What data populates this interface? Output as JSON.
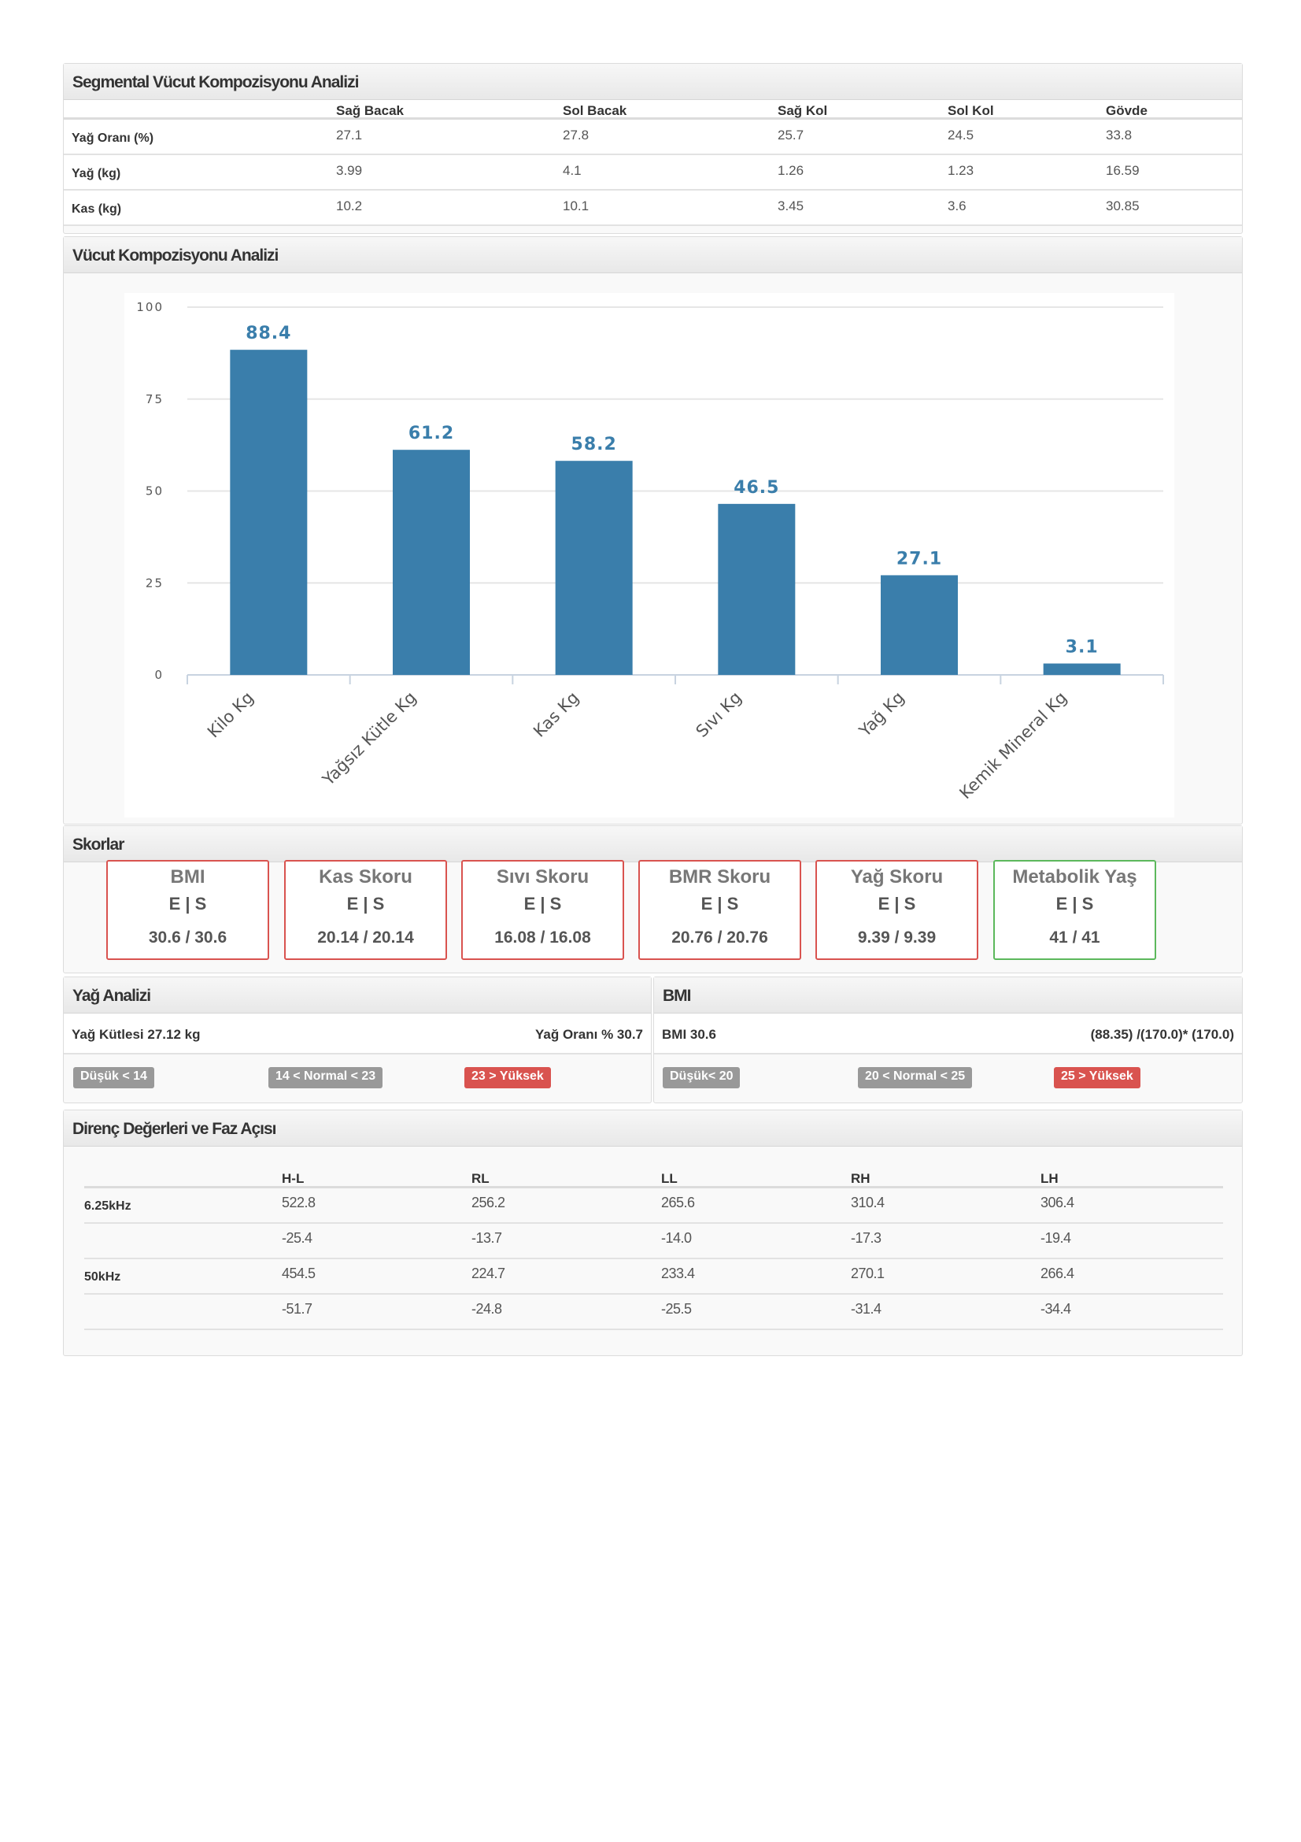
{
  "segmental": {
    "title": "Segmental Vücut Kompozisyonu Analizi",
    "columns": [
      "Sağ Bacak",
      "Sol Bacak",
      "Sağ Kol",
      "Sol Kol",
      "Gövde"
    ],
    "rows": [
      {
        "label": "Yağ Oranı (%)",
        "values": [
          "27.1",
          "27.8",
          "25.7",
          "24.5",
          "33.8"
        ]
      },
      {
        "label": "Yağ (kg)",
        "values": [
          "3.99",
          "4.1",
          "1.26",
          "1.23",
          "16.59"
        ]
      },
      {
        "label": "Kas (kg)",
        "values": [
          "10.2",
          "10.1",
          "3.45",
          "3.6",
          "30.85"
        ]
      }
    ]
  },
  "composition": {
    "title": "Vücut Kompozisyonu Analizi"
  },
  "chart_data": {
    "type": "bar",
    "categories": [
      "Kilo Kg",
      "Yağsız Kütle Kg",
      "Kas Kg",
      "Sıvı Kg",
      "Yağ Kg",
      "Kemik Mineral Kg"
    ],
    "values": [
      88.4,
      61.2,
      58.2,
      46.5,
      27.1,
      3.1
    ],
    "value_labels": [
      "88.4",
      "61.2",
      "58.2",
      "46.5",
      "27.1",
      "3.1"
    ],
    "ylim": [
      0,
      100
    ],
    "yticks": [
      0,
      25,
      50,
      75,
      100
    ],
    "ytick_labels": [
      "0",
      "25",
      "50",
      "75",
      "100"
    ],
    "grid": true,
    "bar_color": "#3a7eab",
    "label_color": "#3a7eab"
  },
  "scores": {
    "title": "Skorlar",
    "items": [
      {
        "name": "BMI",
        "es": "E  |  S",
        "value": "30.6 / 30.6",
        "status": "red"
      },
      {
        "name": "Kas Skoru",
        "es": "E  |  S",
        "value": "20.14 / 20.14",
        "status": "red"
      },
      {
        "name": "Sıvı Skoru",
        "es": "E  |  S",
        "value": "16.08 / 16.08",
        "status": "red"
      },
      {
        "name": "BMR Skoru",
        "es": "E  |  S",
        "value": "20.76  /  20.76",
        "status": "red"
      },
      {
        "name": "Yağ Skoru",
        "es": "E  |  S",
        "value": "9.39  /  9.39",
        "status": "red"
      },
      {
        "name": "Metabolik Yaş",
        "es": "E     |     S",
        "value": "41     /     41",
        "status": "green"
      }
    ]
  },
  "fat": {
    "title": "Yağ Analizi",
    "left": "Yağ Kütlesi 27.12 kg",
    "right": "Yağ Oranı % 30.7",
    "badges": [
      "Düşük < 14",
      "14 < Normal < 23",
      "23 > Yüksek"
    ]
  },
  "bmi": {
    "title": "BMI",
    "left": "BMI 30.6",
    "right": "(88.35) /(170.0)* (170.0)",
    "badges": [
      "Düşük< 20",
      "20 < Normal < 25",
      "25 > Yüksek"
    ]
  },
  "impedance": {
    "title": "Direnç Değerleri ve Faz Açısı",
    "columns": [
      "H-L",
      "RL",
      "LL",
      "RH",
      "LH"
    ],
    "rows": [
      {
        "label": "6.25kHz",
        "values": [
          "522.8",
          "256.2",
          "265.6",
          "310.4",
          "306.4"
        ]
      },
      {
        "label": "",
        "values": [
          "-25.4",
          "-13.7",
          "-14.0",
          "-17.3",
          "-19.4"
        ]
      },
      {
        "label": "50kHz",
        "values": [
          "454.5",
          "224.7",
          "233.4",
          "270.1",
          "266.4"
        ]
      },
      {
        "label": "",
        "values": [
          "-51.7",
          "-24.8",
          "-25.5",
          "-31.4",
          "-34.4"
        ]
      }
    ]
  }
}
